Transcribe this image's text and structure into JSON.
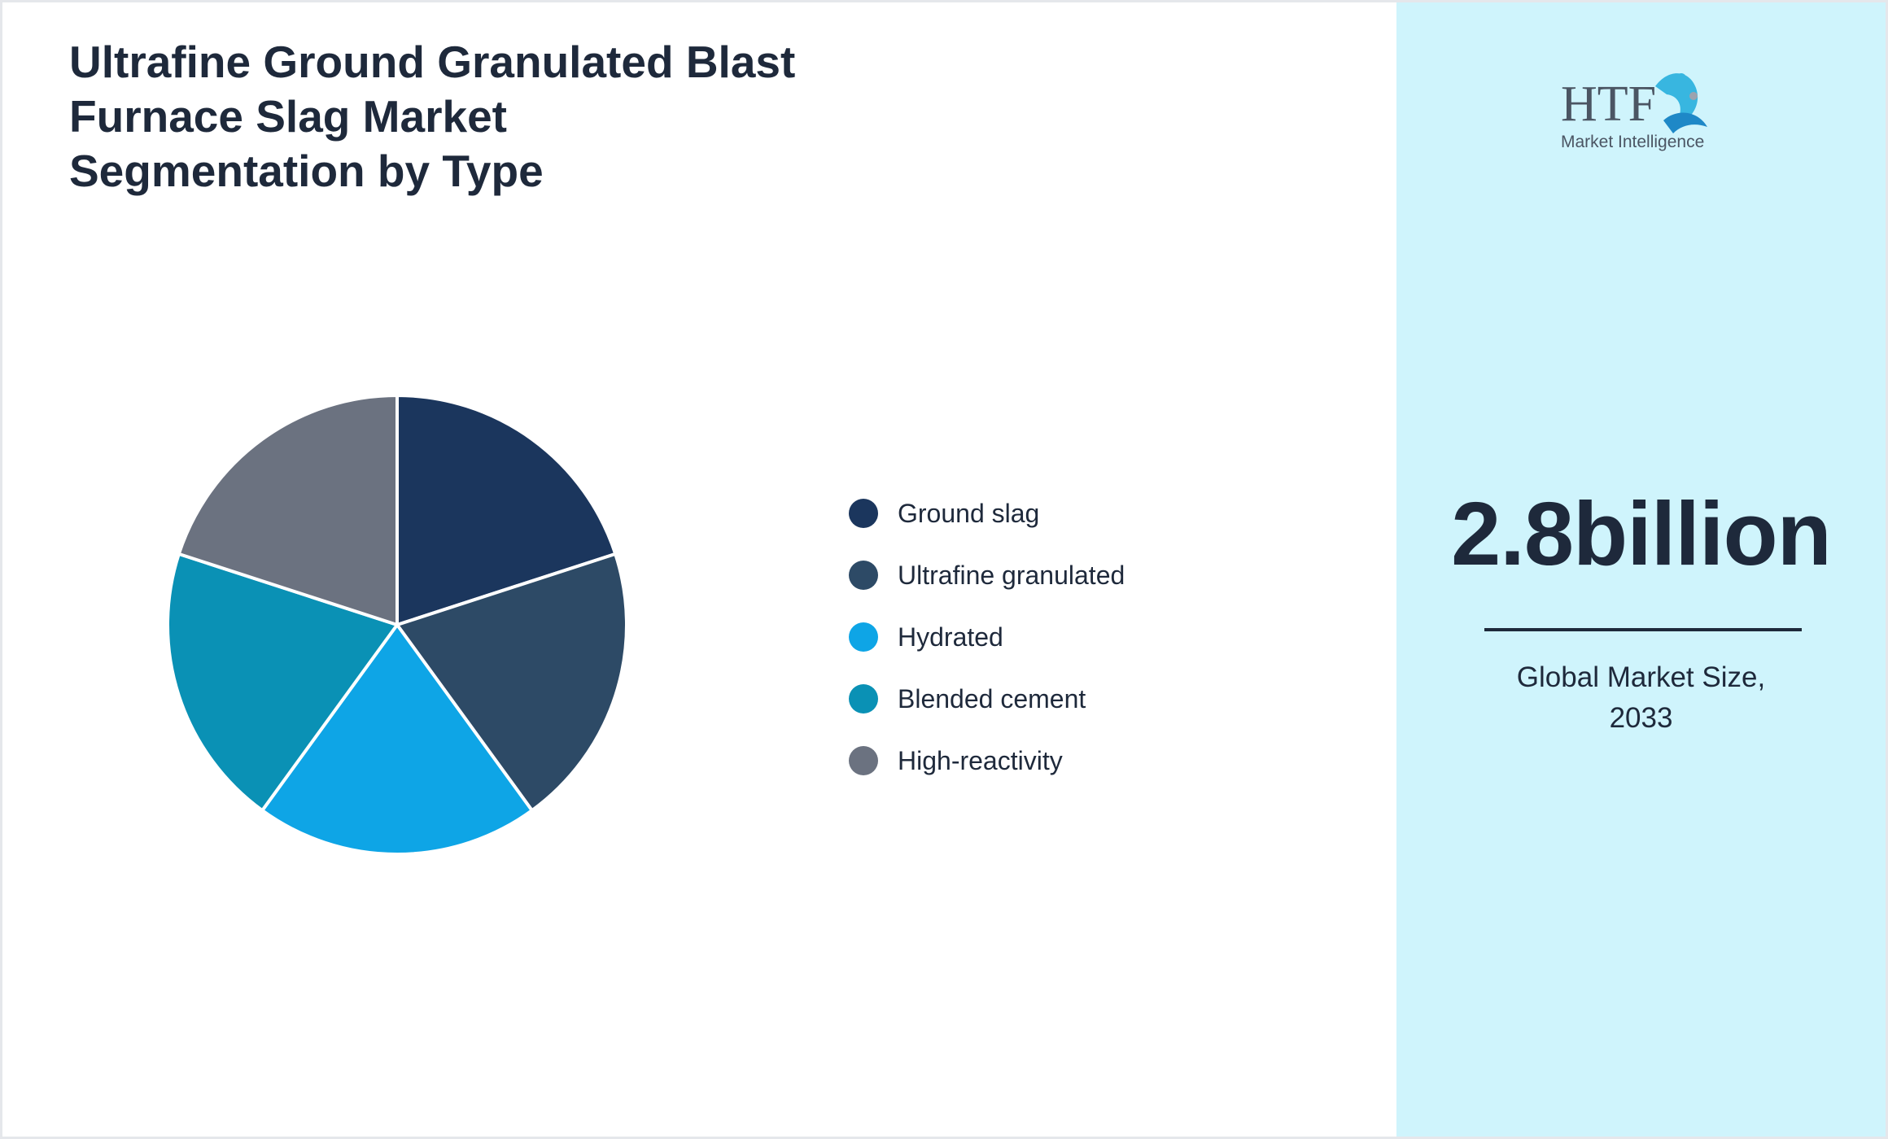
{
  "title_lines": [
    "Ultrafine Ground Granulated Blast",
    "Furnace Slag Market",
    "Segmentation by Type"
  ],
  "chart_data": {
    "type": "pie",
    "title": "Ultrafine Ground Granulated Blast Furnace Slag Market Segmentation by Type",
    "categories": [
      "Ground slag",
      "Ultrafine granulated",
      "Hydrated",
      "Blended cement",
      "High-reactivity"
    ],
    "values": [
      20,
      20,
      20,
      20,
      20
    ],
    "colors": [
      "#1b365d",
      "#2d4a66",
      "#0ea5e6",
      "#0a91b5",
      "#6b7280"
    ],
    "legend": "right"
  },
  "market_value": "2.8billion",
  "market_caption_lines": [
    "Global Market Size,",
    "2033"
  ],
  "logo": {
    "text": "HTF",
    "subtext": "Market Intelligence"
  },
  "colors": {
    "panel_bg": "#cff4fc",
    "text": "#1e293b"
  }
}
